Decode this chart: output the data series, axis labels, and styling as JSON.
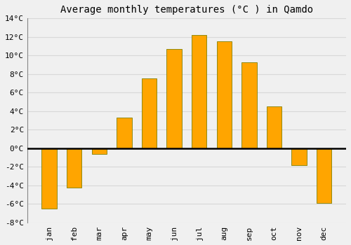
{
  "title": "Average monthly temperatures (°C ) in Qamdo",
  "months": [
    "jan",
    "feb",
    "mar",
    "apr",
    "may",
    "jun",
    "jul",
    "aug",
    "sep",
    "oct",
    "nov",
    "dec"
  ],
  "values": [
    -6.5,
    -4.2,
    -0.6,
    3.3,
    7.5,
    10.7,
    12.2,
    11.5,
    9.3,
    4.5,
    -1.8,
    -5.9
  ],
  "bar_color": "#FFA500",
  "bar_edge_color": "#808000",
  "background_color": "#f0f0f0",
  "grid_color": "#d8d8d8",
  "ylim": [
    -8,
    14
  ],
  "yticks": [
    -8,
    -6,
    -4,
    -2,
    0,
    2,
    4,
    6,
    8,
    10,
    12,
    14
  ],
  "title_fontsize": 10,
  "tick_fontsize": 8,
  "font_family": "monospace"
}
